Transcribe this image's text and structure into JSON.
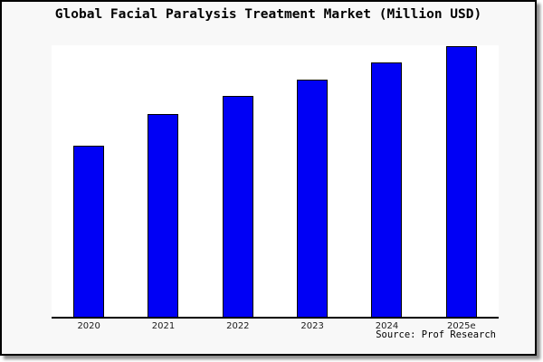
{
  "header": {
    "title": "Global Facial Paralysis Treatment Market (Million USD)"
  },
  "footer": {
    "source": "Source: Prof Research"
  },
  "colors": {
    "bar_fill": "#0000f5",
    "bar_border": "#000000",
    "card_background": "#f8f8f8",
    "plot_background": "#ffffff",
    "axis": "#000000",
    "frame": "#000000",
    "shadow": "#8f8f8f"
  },
  "chart_data": {
    "type": "bar",
    "title": "Global Facial Paralysis Treatment Market (Million USD)",
    "categories": [
      "2020",
      "2021",
      "2022",
      "2023",
      "2024",
      "2025e"
    ],
    "values": [
      63.1,
      75.1,
      81.7,
      87.7,
      94.0,
      100.0
    ],
    "value_note": "relative scale estimated from bar heights; no y-axis tick labels shown, final year 2025e = 100",
    "xlabel": "",
    "ylabel": "",
    "ylim": [
      0,
      100.4
    ],
    "grid": false,
    "legend": false,
    "annotation": "Source: Prof Research"
  }
}
